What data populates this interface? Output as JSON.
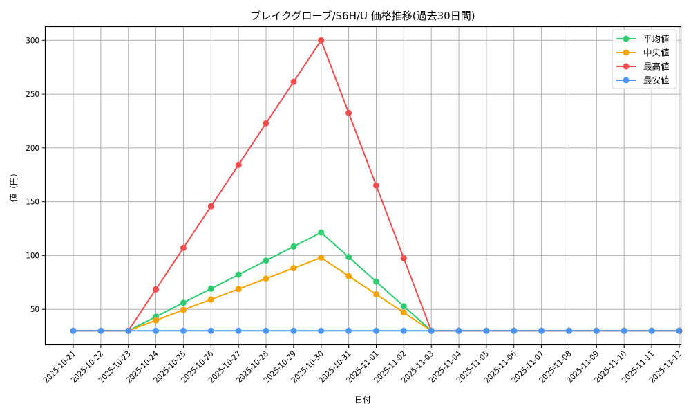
{
  "chart_data": {
    "type": "line",
    "title": "ブレイクグローブ/S6H/U 価格推移(過去30日間)",
    "xlabel": "日付",
    "ylabel": "値（円）",
    "ylim": [
      16,
      313
    ],
    "yticks": [
      50,
      100,
      150,
      200,
      250,
      300
    ],
    "grid": true,
    "legend_position": "upper right",
    "categories": [
      "2025-10-21",
      "2025-10-22",
      "2025-10-23",
      "2025-10-24",
      "2025-10-25",
      "2025-10-26",
      "2025-10-27",
      "2025-10-28",
      "2025-10-29",
      "2025-10-30",
      "2025-10-31",
      "2025-11-01",
      "2025-11-02",
      "2025-11-03",
      "2025-11-04",
      "2025-11-05",
      "2025-11-06",
      "2025-11-07",
      "2025-11-08",
      "2025-11-09",
      "2025-11-10",
      "2025-11-11",
      "2025-11-12"
    ],
    "series": [
      {
        "name": "平均値",
        "color": "#2ecc71",
        "values": [
          30,
          30,
          30,
          43.1,
          56.1,
          69.2,
          82.2,
          95.3,
          108.4,
          121.4,
          98.6,
          75.7,
          52.9,
          30,
          30,
          30,
          30,
          30,
          30,
          30,
          30,
          30,
          30
        ]
      },
      {
        "name": "中央値",
        "color": "#f5a300",
        "values": [
          30,
          30,
          30,
          39.7,
          49.4,
          59.1,
          68.9,
          78.6,
          88.3,
          98,
          81,
          64,
          47,
          30,
          30,
          30,
          30,
          30,
          30,
          30,
          30,
          30,
          30
        ]
      },
      {
        "name": "最高値",
        "color": "#f24b4b",
        "values": [
          30,
          30,
          30,
          68.6,
          107.1,
          145.7,
          184.3,
          222.9,
          261.4,
          300,
          232.5,
          165,
          97.5,
          30,
          30,
          30,
          30,
          30,
          30,
          30,
          30,
          30,
          30
        ]
      },
      {
        "name": "最安値",
        "color": "#4a96f0",
        "values": [
          30,
          30,
          30,
          30,
          30,
          30,
          30,
          30,
          30,
          30,
          30,
          30,
          30,
          30,
          30,
          30,
          30,
          30,
          30,
          30,
          30,
          30,
          30
        ]
      }
    ]
  },
  "legend": {
    "items": [
      "平均値",
      "中央値",
      "最高値",
      "最安値"
    ]
  }
}
